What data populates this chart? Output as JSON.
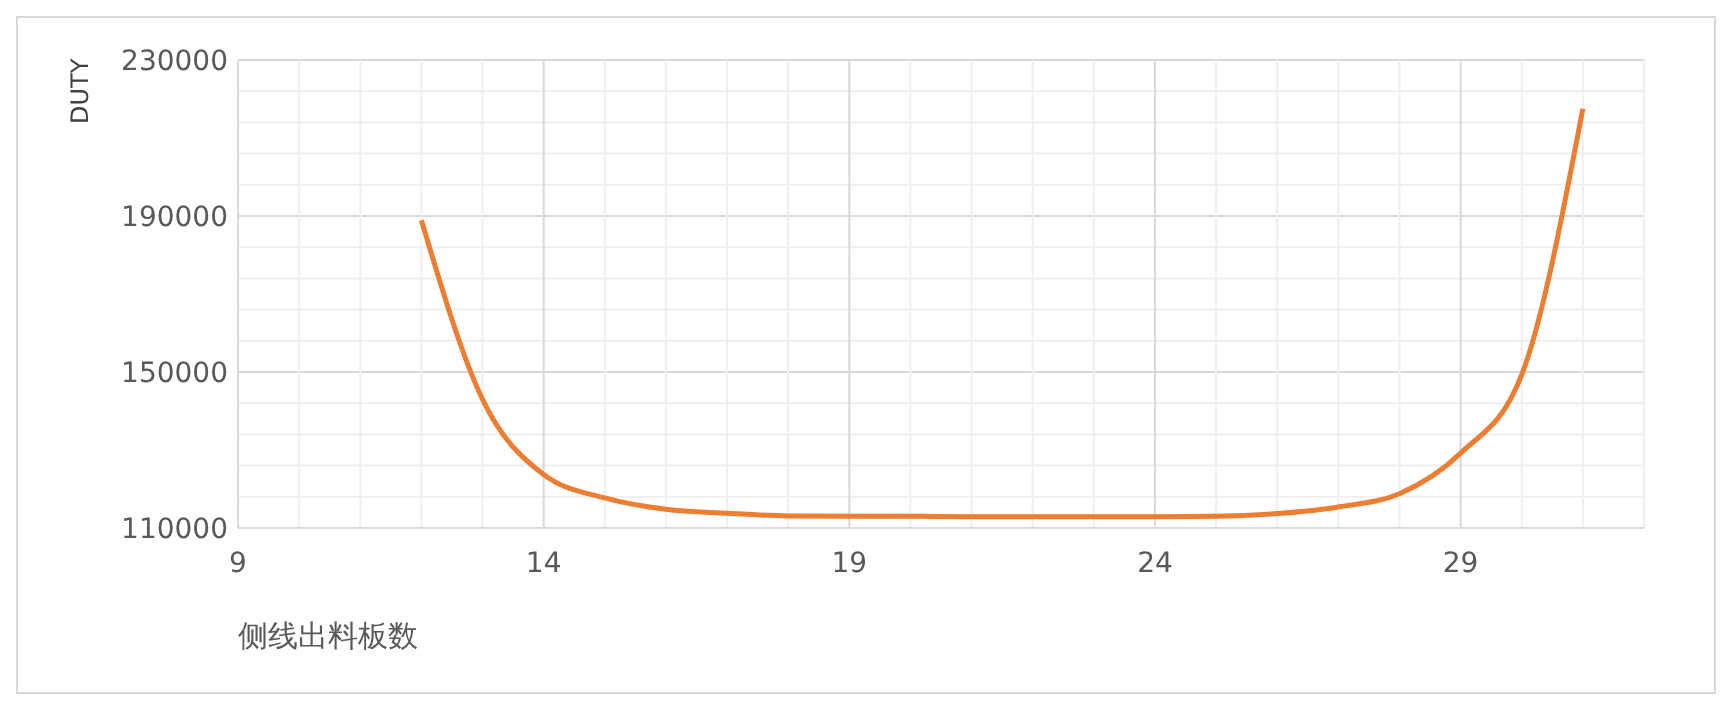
{
  "chart_data": {
    "type": "line",
    "xlabel": "侧线出料板数",
    "ylabel": "DUTY",
    "x": [
      12,
      13,
      14,
      15,
      16,
      17,
      18,
      19,
      20,
      21,
      22,
      23,
      24,
      25,
      26,
      27,
      28,
      29,
      30,
      31
    ],
    "series": [
      {
        "color": "#ed7d31",
        "values": [
          188900,
          143000,
          123700,
          117700,
          114800,
          113800,
          113100,
          113000,
          113000,
          112900,
          112900,
          112900,
          112900,
          113000,
          113700,
          115400,
          118800,
          129200,
          149300,
          217500
        ]
      }
    ],
    "xlim": [
      9,
      32
    ],
    "xticks": [
      9,
      {
        "value": 10,
        "label": null
      },
      {
        "value": 11,
        "label": null
      },
      {
        "value": 12,
        "label": null
      },
      {
        "value": 13,
        "label": null
      },
      14,
      {
        "value": 15,
        "label": null
      },
      {
        "value": 16,
        "label": null
      },
      {
        "value": 17,
        "label": null
      },
      {
        "value": 18,
        "label": null
      },
      19,
      {
        "value": 20,
        "label": null
      },
      {
        "value": 21,
        "label": null
      },
      {
        "value": 22,
        "label": null
      },
      {
        "value": 23,
        "label": null
      },
      24,
      {
        "value": 25,
        "label": null
      },
      {
        "value": 26,
        "label": null
      },
      {
        "value": 27,
        "label": null
      },
      {
        "value": 28,
        "label": null
      },
      29,
      {
        "value": 30,
        "label": null
      },
      {
        "value": 31,
        "label": null
      },
      {
        "value": 32,
        "label": null
      }
    ],
    "ylim": [
      110000,
      230000
    ],
    "yticks": [
      110000,
      {
        "value": 118000,
        "label": null
      },
      {
        "value": 126000,
        "label": null
      },
      {
        "value": 134000,
        "label": null
      },
      {
        "value": 142000,
        "label": null
      },
      150000,
      {
        "value": 158000,
        "label": null
      },
      {
        "value": 166000,
        "label": null
      },
      {
        "value": 174000,
        "label": null
      },
      {
        "value": 182000,
        "label": null
      },
      190000,
      {
        "value": 198000,
        "label": null
      },
      {
        "value": 206000,
        "label": null
      },
      {
        "value": 214000,
        "label": null
      },
      {
        "value": 222000,
        "label": null
      },
      230000
    ],
    "grid": true,
    "marker": "none",
    "line_style": "solid"
  }
}
